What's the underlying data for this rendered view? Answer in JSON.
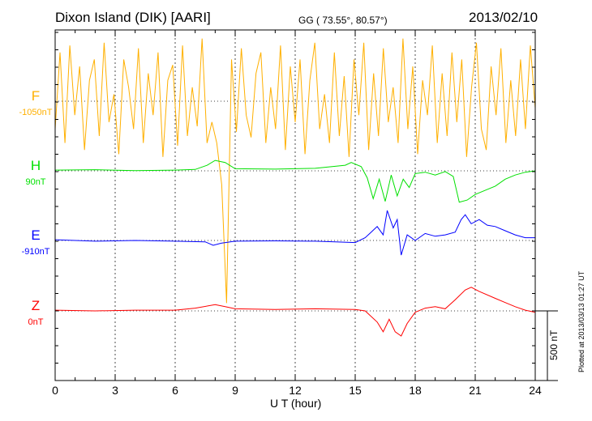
{
  "header": {
    "title": "Dixon Island (DIK)  [AARI]",
    "coords": "GG ( 73.55°,  80.57°)",
    "date": "2013/02/10"
  },
  "footer": {
    "plotted": "Plotted at 2013/03/13 01:27 UT"
  },
  "chart_data": {
    "type": "line",
    "xlabel": "U T (hour)",
    "xlim": [
      0,
      24
    ],
    "xticks": [
      "0",
      "3",
      "6",
      "9",
      "12",
      "15",
      "18",
      "21",
      "24"
    ],
    "scale_bar": "500 nT",
    "scale_nT": 500,
    "grid": "dotted every 3 h and per-channel baselines",
    "series": [
      {
        "name": "F",
        "baseline_label": "-1050nT",
        "color": "#ffb000",
        "offset_slot": 0,
        "values": [
          -200,
          350,
          -300,
          400,
          -100,
          250,
          -350,
          150,
          300,
          -250,
          420,
          -150,
          50,
          -380,
          300,
          100,
          -200,
          380,
          -300,
          200,
          -100,
          350,
          -400,
          150,
          260,
          -320,
          400,
          -250,
          100,
          -180,
          450,
          -300,
          -150,
          -300,
          -600,
          -1450,
          300,
          -220,
          380,
          -100,
          -260,
          200,
          350,
          -300,
          100,
          -200,
          400,
          -350,
          250,
          -150,
          300,
          -380,
          150,
          420,
          -200,
          50,
          -300,
          350,
          -250,
          180,
          -400,
          300,
          -100,
          420,
          -350,
          200,
          -250,
          380,
          -150,
          100,
          -300,
          450,
          -200,
          250,
          -380,
          150,
          -100,
          400,
          -300,
          200,
          -250,
          350,
          -150,
          300,
          -400,
          100,
          420,
          -200,
          -350,
          250,
          -100,
          380,
          -300,
          150,
          -250,
          300,
          -200,
          400,
          -50
        ]
      },
      {
        "name": "H",
        "baseline_label": "90nT",
        "color": "#00e000",
        "offset_slot": 1,
        "points": [
          [
            0,
            5
          ],
          [
            2,
            8
          ],
          [
            4,
            2
          ],
          [
            6,
            5
          ],
          [
            7,
            10
          ],
          [
            7.6,
            40
          ],
          [
            8,
            75
          ],
          [
            8.5,
            60
          ],
          [
            9,
            15
          ],
          [
            11,
            12
          ],
          [
            13,
            18
          ],
          [
            14.5,
            40
          ],
          [
            14.8,
            60
          ],
          [
            15.3,
            30
          ],
          [
            15.6,
            -50
          ],
          [
            15.9,
            -200
          ],
          [
            16.2,
            -60
          ],
          [
            16.5,
            -220
          ],
          [
            16.8,
            -30
          ],
          [
            17.1,
            -180
          ],
          [
            17.4,
            -60
          ],
          [
            17.7,
            -120
          ],
          [
            18,
            -20
          ],
          [
            18.5,
            -10
          ],
          [
            19,
            -30
          ],
          [
            19.5,
            -5
          ],
          [
            19.9,
            -40
          ],
          [
            20.2,
            -225
          ],
          [
            20.6,
            -210
          ],
          [
            21,
            -170
          ],
          [
            21.5,
            -140
          ],
          [
            22,
            -110
          ],
          [
            22.5,
            -60
          ],
          [
            23,
            -30
          ],
          [
            23.5,
            -10
          ],
          [
            24,
            0
          ]
        ]
      },
      {
        "name": "E",
        "baseline_label": "-910nT",
        "color": "#0000ff",
        "offset_slot": 2,
        "points": [
          [
            0,
            5
          ],
          [
            2,
            -5
          ],
          [
            4,
            0
          ],
          [
            6,
            -5
          ],
          [
            7.5,
            -10
          ],
          [
            7.9,
            -35
          ],
          [
            8.3,
            -20
          ],
          [
            9,
            -5
          ],
          [
            11,
            -3
          ],
          [
            13,
            -5
          ],
          [
            15,
            -15
          ],
          [
            15.5,
            20
          ],
          [
            15.8,
            60
          ],
          [
            16.1,
            100
          ],
          [
            16.4,
            40
          ],
          [
            16.6,
            215
          ],
          [
            16.9,
            90
          ],
          [
            17.1,
            150
          ],
          [
            17.3,
            -105
          ],
          [
            17.6,
            40
          ],
          [
            18,
            0
          ],
          [
            18.5,
            50
          ],
          [
            19,
            30
          ],
          [
            19.5,
            40
          ],
          [
            20,
            60
          ],
          [
            20.3,
            150
          ],
          [
            20.5,
            185
          ],
          [
            20.8,
            120
          ],
          [
            21.2,
            150
          ],
          [
            21.6,
            110
          ],
          [
            22,
            100
          ],
          [
            22.5,
            70
          ],
          [
            23,
            40
          ],
          [
            23.5,
            20
          ],
          [
            24,
            20
          ]
        ]
      },
      {
        "name": "Z",
        "baseline_label": "0nT",
        "color": "#ff0000",
        "offset_slot": 3,
        "points": [
          [
            0,
            5
          ],
          [
            2,
            0
          ],
          [
            4,
            5
          ],
          [
            6,
            5
          ],
          [
            7,
            20
          ],
          [
            8,
            45
          ],
          [
            8.5,
            30
          ],
          [
            9,
            15
          ],
          [
            11,
            10
          ],
          [
            13,
            15
          ],
          [
            15,
            10
          ],
          [
            15.5,
            0
          ],
          [
            16.1,
            -80
          ],
          [
            16.4,
            -150
          ],
          [
            16.7,
            -60
          ],
          [
            17,
            -150
          ],
          [
            17.3,
            -180
          ],
          [
            17.6,
            -90
          ],
          [
            18,
            -10
          ],
          [
            18.5,
            20
          ],
          [
            19,
            30
          ],
          [
            19.5,
            15
          ],
          [
            20,
            80
          ],
          [
            20.5,
            150
          ],
          [
            20.8,
            170
          ],
          [
            21.2,
            140
          ],
          [
            22,
            90
          ],
          [
            22.5,
            60
          ],
          [
            23,
            30
          ],
          [
            23.5,
            5
          ],
          [
            24,
            -10
          ]
        ]
      }
    ]
  }
}
